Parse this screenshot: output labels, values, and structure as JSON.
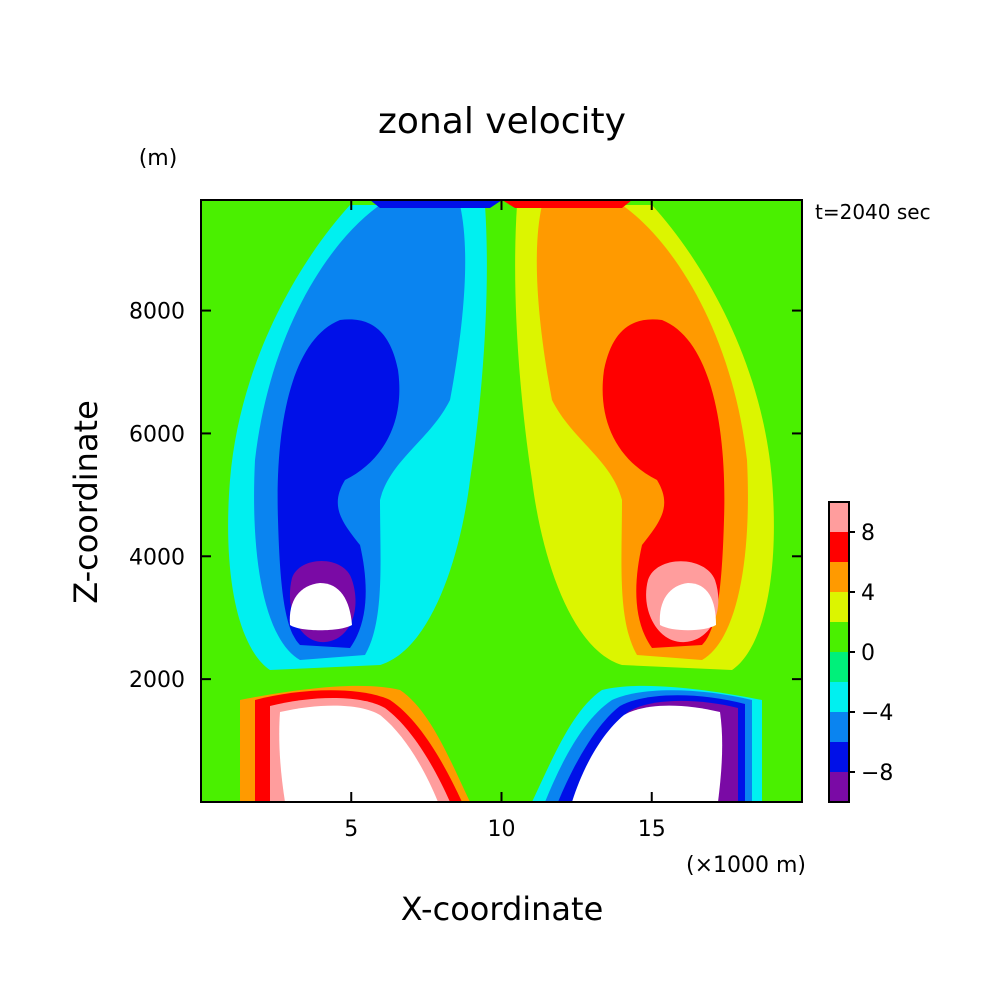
{
  "chart_data": {
    "type": "heatmap",
    "title": "zonal velocity",
    "ylabel": "Z-coordinate",
    "yunit": "(m)",
    "xlabel": "X-coordinate",
    "xunit": "(×1000 m)",
    "time_label": "t=2040 sec",
    "xlim": [
      0,
      20
    ],
    "ylim": [
      0,
      9800
    ],
    "xticks": [
      5,
      10,
      15
    ],
    "yticks": [
      2000,
      4000,
      6000,
      8000
    ],
    "colorbar": {
      "levels": [
        -10,
        -8,
        -6,
        -4,
        -2,
        0,
        2,
        4,
        6,
        8,
        10
      ],
      "colors": [
        "#7a0aa5",
        "#0010e8",
        "#0a84f0",
        "#00f0f0",
        "#00f07a",
        "#4af000",
        "#dcf500",
        "#ff9a00",
        "#ff0000",
        "#ff9d9d"
      ],
      "tick_values": [
        -8,
        -4,
        0,
        4,
        8
      ],
      "tick_labels": [
        "−8",
        "−4",
        "0",
        "4",
        "8"
      ]
    },
    "field_features": [
      {
        "label": "negative jet core",
        "x": 4.5,
        "z": 6200,
        "value": -8
      },
      {
        "label": "positive jet core",
        "x": 15.5,
        "z": 6200,
        "value": 8
      },
      {
        "label": "low-level negative anomaly",
        "x": 4.0,
        "z": 3200,
        "value": -10
      },
      {
        "label": "low-level positive anomaly",
        "x": 16.0,
        "z": 3200,
        "value": 10
      },
      {
        "label": "near-surface positive outflow",
        "x": 5.0,
        "z": 800,
        "value": 10
      },
      {
        "label": "near-surface negative outflow",
        "x": 15.0,
        "z": 800,
        "value": -10
      }
    ]
  }
}
